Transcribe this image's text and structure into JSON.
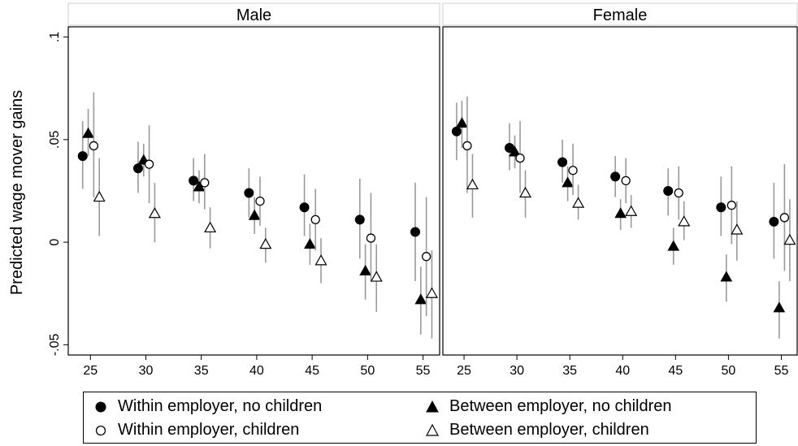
{
  "chart_data": {
    "type": "scatter",
    "ylabel": "Predicted wage mover gains",
    "ylim": [
      -0.055,
      0.105
    ],
    "yticks": [
      -0.05,
      0,
      0.05,
      0.1
    ],
    "ytick_labels": [
      "-.05",
      "0",
      ".05",
      ".1"
    ],
    "xticks": [
      25,
      30,
      35,
      40,
      45,
      50,
      55
    ],
    "xtick_labels": [
      "25",
      "30",
      "35",
      "40",
      "45",
      "50",
      "55"
    ],
    "xlim": [
      23,
      56.5
    ],
    "legend_position": "bottom",
    "series_styles": [
      {
        "key": "within_nochild",
        "label": "Within employer, no children",
        "marker": "circle",
        "filled": true
      },
      {
        "key": "between_nochild",
        "label": "Between employer, no children",
        "marker": "triangle",
        "filled": true
      },
      {
        "key": "within_child",
        "label": "Within employer, children",
        "marker": "circle",
        "filled": false
      },
      {
        "key": "between_child",
        "label": "Between employer, children",
        "marker": "triangle",
        "filled": false
      }
    ],
    "panels": [
      {
        "title": "Male",
        "series": {
          "within_nochild": {
            "x": [
              24.3,
              29.3,
              34.3,
              39.3,
              44.3,
              49.3,
              54.3
            ],
            "y": [
              0.042,
              0.036,
              0.03,
              0.024,
              0.017,
              0.011,
              0.005
            ],
            "lo": [
              0.026,
              0.024,
              0.02,
              0.012,
              0.003,
              -0.008,
              -0.019
            ],
            "hi": [
              0.059,
              0.049,
              0.041,
              0.036,
              0.033,
              0.031,
              0.029
            ]
          },
          "between_nochild": {
            "x": [
              24.8,
              29.8,
              34.8,
              39.8,
              44.8,
              49.8,
              54.8
            ],
            "y": [
              0.053,
              0.04,
              0.027,
              0.013,
              -0.001,
              -0.014,
              -0.028
            ],
            "lo": [
              0.042,
              0.032,
              0.019,
              0.004,
              -0.011,
              -0.028,
              -0.045
            ],
            "hi": [
              0.065,
              0.048,
              0.035,
              0.022,
              0.009,
              -0.001,
              -0.012
            ]
          },
          "within_child": {
            "x": [
              25.3,
              30.3,
              35.3,
              40.3,
              45.3,
              50.3,
              55.3
            ],
            "y": [
              0.047,
              0.038,
              0.029,
              0.02,
              0.011,
              0.002,
              -0.007
            ],
            "lo": [
              0.022,
              0.019,
              0.016,
              0.008,
              -0.004,
              -0.019,
              -0.036
            ],
            "hi": [
              0.073,
              0.057,
              0.043,
              0.032,
              0.026,
              0.024,
              0.022
            ]
          },
          "between_child": {
            "x": [
              25.8,
              30.8,
              35.8,
              40.8,
              45.8,
              50.8,
              55.8
            ],
            "y": [
              0.022,
              0.014,
              0.007,
              -0.001,
              -0.009,
              -0.017,
              -0.025
            ],
            "lo": [
              0.003,
              0.0,
              -0.003,
              -0.01,
              -0.02,
              -0.034,
              -0.047
            ],
            "hi": [
              0.041,
              0.029,
              0.017,
              0.007,
              0.002,
              -0.001,
              -0.004
            ]
          }
        }
      },
      {
        "title": "Female",
        "series": {
          "within_nochild": {
            "x": [
              24.3,
              29.3,
              34.3,
              39.3,
              44.3,
              49.3,
              54.3
            ],
            "y": [
              0.054,
              0.046,
              0.039,
              0.032,
              0.025,
              0.017,
              0.01
            ],
            "lo": [
              0.04,
              0.035,
              0.029,
              0.022,
              0.013,
              0.003,
              -0.008
            ],
            "hi": [
              0.068,
              0.058,
              0.05,
              0.042,
              0.036,
              0.032,
              0.029
            ]
          },
          "between_nochild": {
            "x": [
              24.8,
              29.8,
              34.8,
              39.8,
              44.8,
              49.8,
              54.8
            ],
            "y": [
              0.058,
              0.044,
              0.029,
              0.014,
              -0.002,
              -0.017,
              -0.032
            ],
            "lo": [
              0.046,
              0.036,
              0.02,
              0.006,
              -0.011,
              -0.029,
              -0.047
            ],
            "hi": [
              0.069,
              0.052,
              0.037,
              0.021,
              0.007,
              -0.006,
              -0.019
            ]
          },
          "within_child": {
            "x": [
              25.3,
              30.3,
              35.3,
              40.3,
              45.3,
              50.3,
              55.3
            ],
            "y": [
              0.047,
              0.041,
              0.035,
              0.03,
              0.024,
              0.018,
              0.012
            ],
            "lo": [
              0.024,
              0.024,
              0.023,
              0.019,
              0.011,
              -0.001,
              -0.014
            ],
            "hi": [
              0.071,
              0.059,
              0.048,
              0.041,
              0.037,
              0.037,
              0.038
            ]
          },
          "between_child": {
            "x": [
              25.8,
              30.8,
              35.8,
              40.8,
              45.8,
              50.8,
              55.8
            ],
            "y": [
              0.028,
              0.024,
              0.019,
              0.015,
              0.01,
              0.006,
              0.001
            ],
            "lo": [
              0.012,
              0.012,
              0.011,
              0.007,
              0.001,
              -0.009,
              -0.019
            ],
            "hi": [
              0.043,
              0.035,
              0.028,
              0.023,
              0.02,
              0.02,
              0.021
            ]
          }
        }
      }
    ]
  }
}
